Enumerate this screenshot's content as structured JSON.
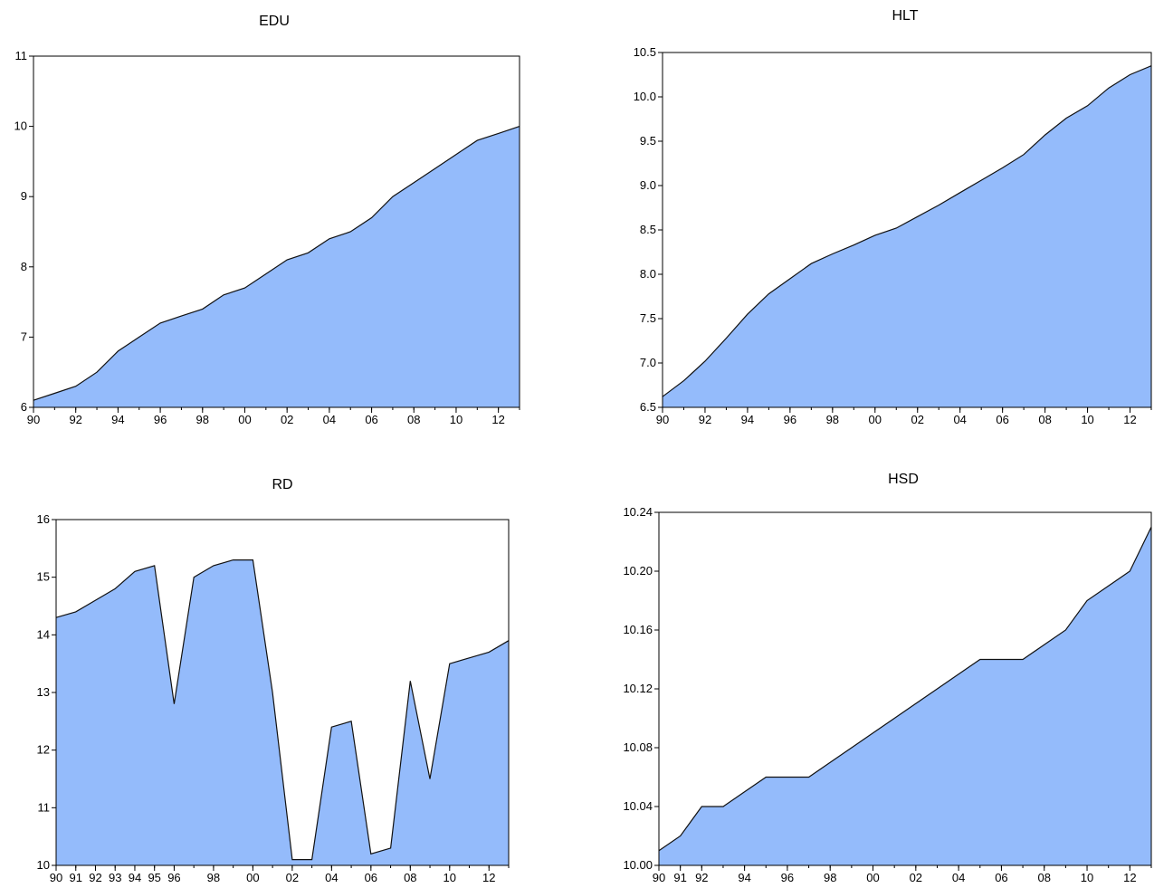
{
  "chart_data": [
    {
      "type": "area",
      "title": "EDU",
      "xlabel": "",
      "ylabel": "",
      "x": [
        1990,
        1991,
        1992,
        1993,
        1994,
        1995,
        1996,
        1997,
        1998,
        1999,
        2000,
        2001,
        2002,
        2003,
        2004,
        2005,
        2006,
        2007,
        2008,
        2009,
        2010,
        2011,
        2012,
        2013
      ],
      "values": [
        6.1,
        6.2,
        6.3,
        6.5,
        6.8,
        7.0,
        7.2,
        7.3,
        7.4,
        7.6,
        7.7,
        7.9,
        8.1,
        8.2,
        8.4,
        8.5,
        8.7,
        9.0,
        9.2,
        9.4,
        9.6,
        9.8,
        9.9,
        10.0
      ],
      "xlim": [
        1990,
        2013
      ],
      "ylim": [
        6,
        11
      ],
      "yticks": [
        6,
        7,
        8,
        9,
        10,
        11
      ],
      "ytick_labels": [
        "6",
        "7",
        "8",
        "9",
        "10",
        "11"
      ],
      "xtick_labels": [
        "90",
        "92",
        "94",
        "96",
        "98",
        "00",
        "02",
        "04",
        "06",
        "08",
        "10",
        "12"
      ],
      "fill": "#94bbfb",
      "grid": false
    },
    {
      "type": "area",
      "title": "HLT",
      "xlabel": "",
      "ylabel": "",
      "x": [
        1990,
        1991,
        1992,
        1993,
        1994,
        1995,
        1996,
        1997,
        1998,
        1999,
        2000,
        2001,
        2002,
        2003,
        2004,
        2005,
        2006,
        2007,
        2008,
        2009,
        2010,
        2011,
        2012,
        2013
      ],
      "values": [
        6.62,
        6.8,
        7.02,
        7.28,
        7.55,
        7.78,
        7.95,
        8.12,
        8.23,
        8.33,
        8.44,
        8.52,
        8.65,
        8.78,
        8.92,
        9.06,
        9.2,
        9.35,
        9.57,
        9.76,
        9.9,
        10.1,
        10.25,
        10.35
      ],
      "xlim": [
        1990,
        2013
      ],
      "ylim": [
        6.5,
        10.5
      ],
      "yticks": [
        6.5,
        7.0,
        7.5,
        8.0,
        8.5,
        9.0,
        9.5,
        10.0,
        10.5
      ],
      "ytick_labels": [
        "6.5",
        "7.0",
        "7.5",
        "8.0",
        "8.5",
        "9.0",
        "9.5",
        "10.0",
        "10.5"
      ],
      "xtick_labels": [
        "90",
        "92",
        "94",
        "96",
        "98",
        "00",
        "02",
        "04",
        "06",
        "08",
        "10",
        "12"
      ],
      "fill": "#94bbfb",
      "grid": false
    },
    {
      "type": "area",
      "title": "RD",
      "xlabel": "",
      "ylabel": "",
      "x": [
        1990,
        1991,
        1992,
        1993,
        1994,
        1995,
        1996,
        1997,
        1998,
        1999,
        2000,
        2001,
        2002,
        2003,
        2004,
        2005,
        2006,
        2007,
        2008,
        2009,
        2010,
        2011,
        2012,
        2013
      ],
      "values": [
        14.3,
        14.4,
        14.6,
        14.8,
        15.1,
        15.2,
        12.8,
        15.0,
        15.2,
        15.3,
        15.3,
        13.0,
        10.1,
        10.1,
        12.4,
        12.5,
        10.2,
        10.3,
        13.2,
        11.5,
        13.5,
        13.6,
        13.7,
        13.9
      ],
      "xlim": [
        1990,
        2013
      ],
      "ylim": [
        10,
        16
      ],
      "yticks": [
        10,
        11,
        12,
        13,
        14,
        15,
        16
      ],
      "ytick_labels": [
        "10",
        "11",
        "12",
        "13",
        "14",
        "15",
        "16"
      ],
      "xtick_labels": [
        "90",
        "91",
        "92",
        "93",
        "94",
        "95",
        "96",
        "98",
        "00",
        "02",
        "04",
        "06",
        "08",
        "10",
        "12"
      ],
      "fill": "#94bbfb",
      "grid": false
    },
    {
      "type": "area",
      "title": "HSD",
      "xlabel": "",
      "ylabel": "",
      "x": [
        1990,
        1991,
        1992,
        1993,
        1994,
        1995,
        1996,
        1997,
        1998,
        1999,
        2000,
        2001,
        2002,
        2003,
        2004,
        2005,
        2006,
        2007,
        2008,
        2009,
        2010,
        2011,
        2012,
        2013
      ],
      "values": [
        10.01,
        10.02,
        10.04,
        10.04,
        10.05,
        10.06,
        10.06,
        10.06,
        10.07,
        10.08,
        10.09,
        10.1,
        10.11,
        10.12,
        10.13,
        10.14,
        10.14,
        10.14,
        10.15,
        10.16,
        10.18,
        10.19,
        10.2,
        10.23
      ],
      "xlim": [
        1990,
        2013
      ],
      "ylim": [
        10.0,
        10.24
      ],
      "yticks": [
        10.0,
        10.04,
        10.08,
        10.12,
        10.16,
        10.2,
        10.24
      ],
      "ytick_labels": [
        "10.00",
        "10.04",
        "10.08",
        "10.12",
        "10.16",
        "10.20",
        "10.24"
      ],
      "xtick_labels": [
        "90",
        "91",
        "92",
        "94",
        "96",
        "98",
        "00",
        "02",
        "04",
        "06",
        "08",
        "10",
        "12"
      ],
      "fill": "#94bbfb",
      "grid": false
    }
  ]
}
